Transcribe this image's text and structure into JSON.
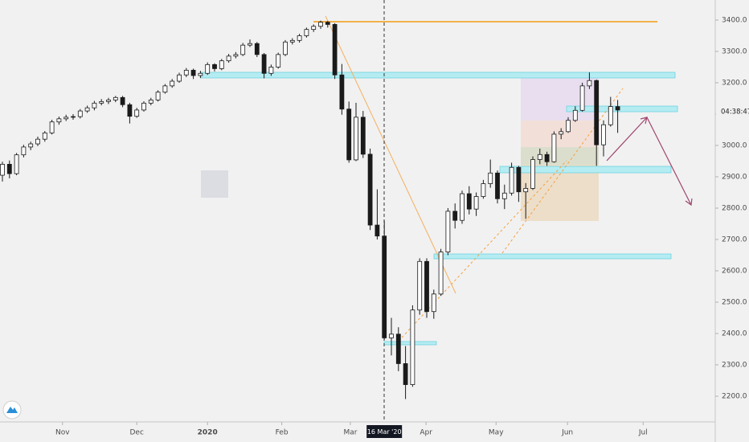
{
  "chart_data": {
    "type": "candlestick",
    "candles": [
      [
        2905,
        2948,
        2885,
        2940
      ],
      [
        2940,
        2952,
        2895,
        2910
      ],
      [
        2910,
        2976,
        2905,
        2970
      ],
      [
        2970,
        3002,
        2962,
        2995
      ],
      [
        2995,
        3012,
        2985,
        3005
      ],
      [
        3005,
        3028,
        2998,
        3020
      ],
      [
        3020,
        3046,
        3012,
        3040
      ],
      [
        3040,
        3082,
        3035,
        3075
      ],
      [
        3075,
        3092,
        3066,
        3085
      ],
      [
        3085,
        3098,
        3078,
        3090
      ],
      [
        3090,
        3100,
        3082,
        3092
      ],
      [
        3092,
        3116,
        3086,
        3110
      ],
      [
        3110,
        3127,
        3104,
        3120
      ],
      [
        3120,
        3142,
        3112,
        3135
      ],
      [
        3135,
        3148,
        3128,
        3140
      ],
      [
        3140,
        3152,
        3132,
        3145
      ],
      [
        3145,
        3158,
        3138,
        3153
      ],
      [
        3153,
        3158,
        3122,
        3130
      ],
      [
        3130,
        3136,
        3070,
        3093
      ],
      [
        3093,
        3120,
        3088,
        3113
      ],
      [
        3113,
        3141,
        3108,
        3135
      ],
      [
        3135,
        3152,
        3128,
        3145
      ],
      [
        3145,
        3176,
        3140,
        3170
      ],
      [
        3170,
        3196,
        3165,
        3190
      ],
      [
        3190,
        3212,
        3184,
        3205
      ],
      [
        3205,
        3232,
        3200,
        3225
      ],
      [
        3225,
        3247,
        3218,
        3240
      ],
      [
        3240,
        3245,
        3212,
        3223
      ],
      [
        3223,
        3238,
        3215,
        3230
      ],
      [
        3230,
        3265,
        3225,
        3258
      ],
      [
        3258,
        3262,
        3236,
        3245
      ],
      [
        3245,
        3276,
        3240,
        3270
      ],
      [
        3270,
        3292,
        3264,
        3285
      ],
      [
        3285,
        3298,
        3278,
        3290
      ],
      [
        3290,
        3327,
        3285,
        3320
      ],
      [
        3320,
        3338,
        3314,
        3325
      ],
      [
        3325,
        3330,
        3282,
        3290
      ],
      [
        3290,
        3295,
        3214,
        3230
      ],
      [
        3230,
        3258,
        3222,
        3250
      ],
      [
        3250,
        3296,
        3245,
        3290
      ],
      [
        3290,
        3336,
        3285,
        3330
      ],
      [
        3330,
        3342,
        3322,
        3335
      ],
      [
        3335,
        3356,
        3328,
        3350
      ],
      [
        3350,
        3376,
        3344,
        3370
      ],
      [
        3370,
        3386,
        3362,
        3380
      ],
      [
        3380,
        3398,
        3372,
        3393
      ],
      [
        3393,
        3397,
        3376,
        3386
      ],
      [
        3386,
        3390,
        3212,
        3225
      ],
      [
        3225,
        3260,
        3098,
        3116
      ],
      [
        3116,
        3140,
        2945,
        2954
      ],
      [
        2954,
        3136,
        2950,
        3090
      ],
      [
        3090,
        3110,
        2960,
        2972
      ],
      [
        2972,
        2990,
        2730,
        2746
      ],
      [
        2746,
        2860,
        2700,
        2711
      ],
      [
        2711,
        2760,
        2380,
        2386
      ],
      [
        2386,
        2450,
        2330,
        2398
      ],
      [
        2398,
        2420,
        2280,
        2304
      ],
      [
        2304,
        2360,
        2191,
        2237
      ],
      [
        2237,
        2490,
        2230,
        2475
      ],
      [
        2475,
        2640,
        2460,
        2630
      ],
      [
        2630,
        2640,
        2450,
        2470
      ],
      [
        2470,
        2540,
        2447,
        2526
      ],
      [
        2526,
        2670,
        2520,
        2660
      ],
      [
        2660,
        2800,
        2650,
        2790
      ],
      [
        2790,
        2815,
        2735,
        2761
      ],
      [
        2761,
        2856,
        2750,
        2846
      ],
      [
        2846,
        2870,
        2780,
        2797
      ],
      [
        2797,
        2850,
        2775,
        2837
      ],
      [
        2837,
        2890,
        2830,
        2878
      ],
      [
        2878,
        2955,
        2865,
        2912
      ],
      [
        2912,
        2920,
        2815,
        2830
      ],
      [
        2830,
        2875,
        2797,
        2848
      ],
      [
        2848,
        2945,
        2840,
        2930
      ],
      [
        2930,
        2935,
        2820,
        2852
      ],
      [
        2852,
        2880,
        2766,
        2863
      ],
      [
        2863,
        2965,
        2858,
        2955
      ],
      [
        2955,
        2990,
        2940,
        2971
      ],
      [
        2971,
        2980,
        2935,
        2948
      ],
      [
        2948,
        3045,
        2945,
        3036
      ],
      [
        3036,
        3055,
        3020,
        3044
      ],
      [
        3044,
        3090,
        3040,
        3080
      ],
      [
        3080,
        3125,
        3075,
        3112
      ],
      [
        3112,
        3200,
        3108,
        3190
      ],
      [
        3190,
        3233,
        3180,
        3207
      ],
      [
        3207,
        3210,
        2935,
        3002
      ],
      [
        3002,
        3080,
        2965,
        3066
      ],
      [
        3066,
        3155,
        3060,
        3124
      ],
      [
        3124,
        3145,
        3040,
        3113
      ]
    ],
    "up_color": "#ffffff",
    "down_color": "#1a1a1a",
    "outline_color": "#1a1a1a",
    "ylim": [
      2118,
      3464
    ],
    "yticks": [
      {
        "value": 2200,
        "label": "2200.0"
      },
      {
        "value": 2300,
        "label": "2300.0"
      },
      {
        "value": 2400,
        "label": "2400.0"
      },
      {
        "value": 2500,
        "label": "2500.0"
      },
      {
        "value": 2600,
        "label": "2600.0"
      },
      {
        "value": 2700,
        "label": "2700.0"
      },
      {
        "value": 2800,
        "label": "2800.0"
      },
      {
        "value": 2900,
        "label": "2900.0"
      },
      {
        "value": 3000,
        "label": "3000.0"
      },
      {
        "value": 3100,
        "label": "3100.0"
      },
      {
        "value": 3200,
        "label": "3200.0"
      },
      {
        "value": 3300,
        "label": "3300.0"
      },
      {
        "value": 3400,
        "label": "3400.0"
      }
    ],
    "xticks": [
      {
        "value": 8.5,
        "label": "Nov"
      },
      {
        "value": 19,
        "label": "Dec"
      },
      {
        "value": 29,
        "label": "2020"
      },
      {
        "value": 39.5,
        "label": "Feb"
      },
      {
        "value": 49.2,
        "label": "Mar"
      },
      {
        "value": 59.9,
        "label": "Apr"
      },
      {
        "value": 69.8,
        "label": "May"
      },
      {
        "value": 79.9,
        "label": "Jun"
      },
      {
        "value": 90.6,
        "label": "Jul"
      }
    ],
    "crosshair": {
      "value": 54,
      "label": "16 Mar '20"
    },
    "countdown": "04:38:47"
  }
}
